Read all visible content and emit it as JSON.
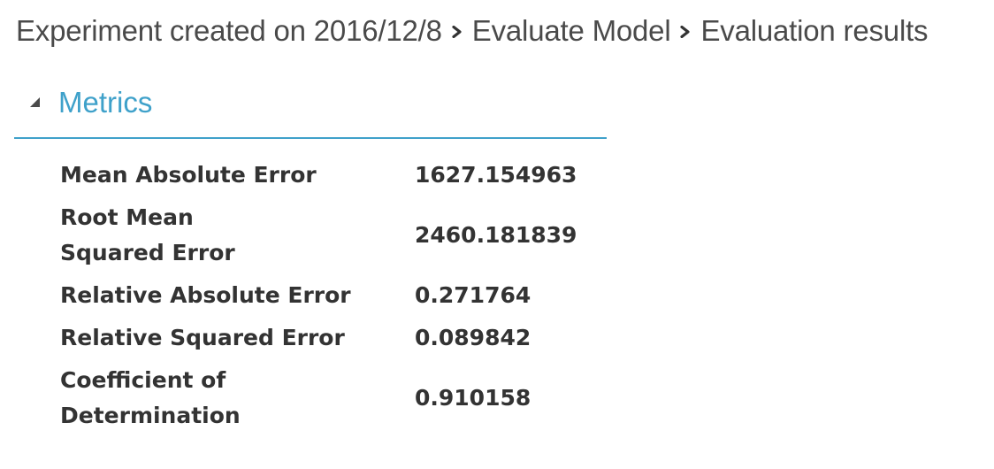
{
  "breadcrumb": {
    "items": [
      "Experiment created on 2016/12/8",
      "Evaluate Model",
      "Evaluation results"
    ],
    "separator_icon": "chevron-right-icon"
  },
  "section": {
    "title": "Metrics",
    "toggle_icon": "triangle-expanded-icon",
    "accent_color": "#3fa1ca"
  },
  "metrics": [
    {
      "name": "Mean Absolute Error",
      "value": "1627.154963"
    },
    {
      "name": "Root Mean Squared Error",
      "value": "2460.181839"
    },
    {
      "name": "Relative Absolute Error",
      "value": "0.271764"
    },
    {
      "name": "Relative Squared Error",
      "value": "0.089842"
    },
    {
      "name": "Coefficient of Determination",
      "value": "0.910158"
    }
  ]
}
